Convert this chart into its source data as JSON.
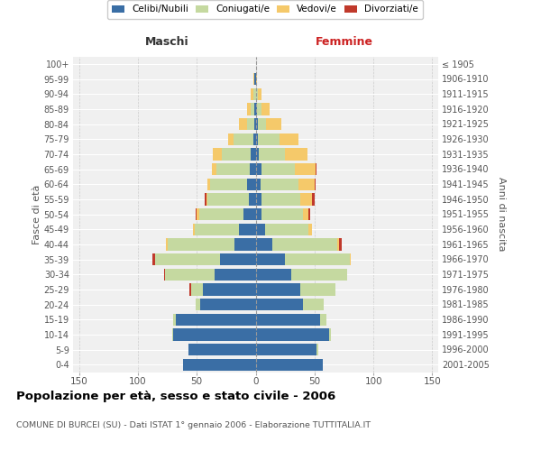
{
  "age_groups": [
    "0-4",
    "5-9",
    "10-14",
    "15-19",
    "20-24",
    "25-29",
    "30-34",
    "35-39",
    "40-44",
    "45-49",
    "50-54",
    "55-59",
    "60-64",
    "65-69",
    "70-74",
    "75-79",
    "80-84",
    "85-89",
    "90-94",
    "95-99",
    "100+"
  ],
  "birth_years": [
    "2001-2005",
    "1996-2000",
    "1991-1995",
    "1986-1990",
    "1981-1985",
    "1976-1980",
    "1971-1975",
    "1966-1970",
    "1961-1965",
    "1956-1960",
    "1951-1955",
    "1946-1950",
    "1941-1945",
    "1936-1940",
    "1931-1935",
    "1926-1930",
    "1921-1925",
    "1916-1920",
    "1911-1915",
    "1906-1910",
    "≤ 1905"
  ],
  "maschi_celibi": [
    62,
    57,
    70,
    68,
    47,
    45,
    35,
    30,
    18,
    14,
    10,
    6,
    7,
    5,
    4,
    2,
    1,
    1,
    0,
    1,
    0
  ],
  "maschi_coniugati": [
    0,
    0,
    1,
    2,
    4,
    10,
    42,
    55,
    57,
    38,
    38,
    35,
    32,
    28,
    25,
    17,
    6,
    3,
    2,
    0,
    0
  ],
  "maschi_vedovi": [
    0,
    0,
    0,
    0,
    0,
    0,
    0,
    0,
    1,
    1,
    2,
    1,
    2,
    4,
    7,
    4,
    7,
    3,
    2,
    1,
    0
  ],
  "maschi_divorziati": [
    0,
    0,
    0,
    0,
    0,
    1,
    1,
    3,
    0,
    0,
    1,
    1,
    0,
    0,
    0,
    0,
    0,
    0,
    0,
    0,
    0
  ],
  "femmine_nubili": [
    57,
    52,
    62,
    55,
    40,
    38,
    30,
    25,
    14,
    8,
    5,
    5,
    4,
    5,
    3,
    2,
    2,
    1,
    0,
    0,
    0
  ],
  "femmine_coniugate": [
    0,
    1,
    2,
    5,
    18,
    30,
    48,
    55,
    55,
    37,
    35,
    33,
    32,
    28,
    22,
    18,
    7,
    4,
    2,
    0,
    0
  ],
  "femmine_vedove": [
    0,
    0,
    0,
    0,
    0,
    0,
    0,
    1,
    2,
    3,
    5,
    10,
    14,
    18,
    19,
    16,
    13,
    7,
    3,
    1,
    0
  ],
  "femmine_divorziate": [
    0,
    0,
    0,
    0,
    0,
    0,
    0,
    0,
    2,
    0,
    1,
    2,
    1,
    1,
    0,
    0,
    0,
    0,
    0,
    0,
    0
  ],
  "color_celibi": "#3a6ea5",
  "color_coniugati": "#c5d9a0",
  "color_vedovi": "#f5c96a",
  "color_divorziati": "#c0392b",
  "xlim": 155,
  "bg_color": "#f0f0f0",
  "grid_color": "#cccccc",
  "title": "Popolazione per età, sesso e stato civile - 2006",
  "subtitle": "COMUNE DI BURCEI (SU) - Dati ISTAT 1° gennaio 2006 - Elaborazione TUTTITALIA.IT",
  "legend_labels": [
    "Celibi/Nubili",
    "Coniugati/e",
    "Vedovi/e",
    "Divorziati/e"
  ],
  "label_maschi": "Maschi",
  "label_femmine": "Femmine",
  "ylabel_left": "Fasce di età",
  "ylabel_right": "Anni di nascita"
}
